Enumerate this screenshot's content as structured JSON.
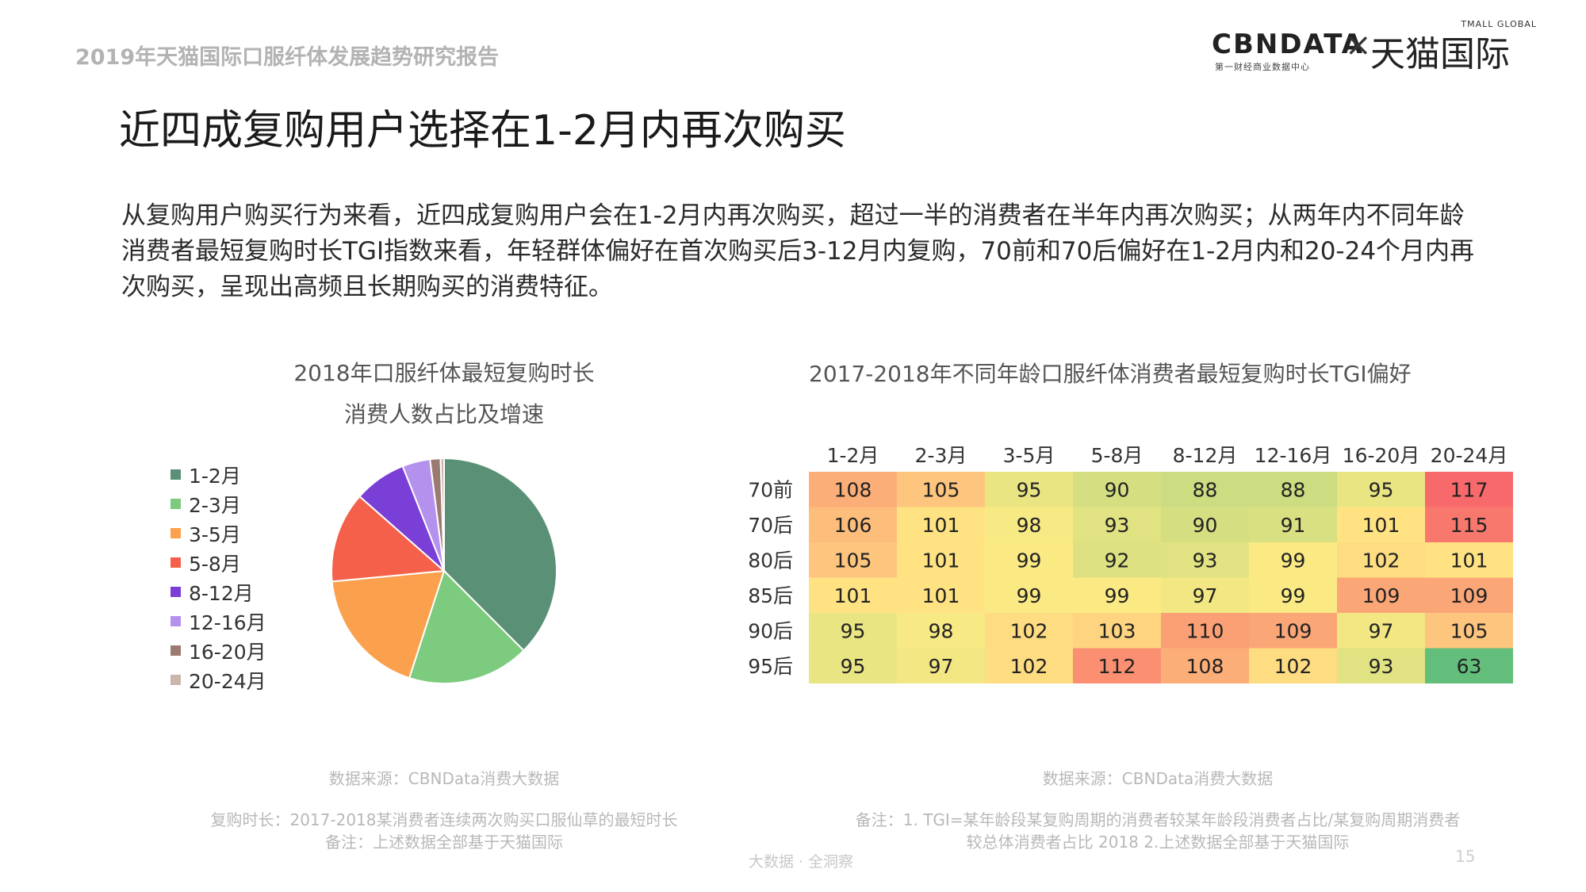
{
  "header": {
    "report_title": "2019年天猫国际口服纤体发展趋势研究报告",
    "logo_cbn": "CBNDATA",
    "logo_cbn_sub": "第一财经商业数据中心",
    "logo_times": "×",
    "logo_tmall": "天猫国际",
    "logo_tmall_en": "TMALL GLOBAL"
  },
  "slide": {
    "title": "近四成复购用户选择在1-2月内再次购买",
    "summary": "从复购用户购买行为来看，近四成复购用户会在1-2月内再次购买，超过一半的消费者在半年内再次购买；从两年内不同年龄消费者最短复购时长TGI指数来看，年轻群体偏好在首次购买后3-12月内复购，70前和70后偏好在1-2月内和20-24个月内再次购买，呈现出高频且长期购买的消费特征。"
  },
  "pie": {
    "title_line1": "2018年口服纤体最短复购时长",
    "title_line2": "消费人数占比及增速",
    "source": "数据来源：CBNData消费大数据",
    "note_line1": "复购时长：2017-2018某消费者连续两次购买口服仙草的最短时长",
    "note_line2": "备注：上述数据全部基于天猫国际"
  },
  "heatmap": {
    "title": "2017-2018年不同年龄口服纤体消费者最短复购时长TGI偏好",
    "source": "数据来源：CBNData消费大数据",
    "note_line1": "备注：1. TGI=某年龄段某复购周期的消费者较某年龄段消费者占比/某复购周期消费者",
    "note_line2": "较总体消费者占比  2018 2.上述数据全部基于天猫国际"
  },
  "footer": {
    "slogan": "大数据 · 全洞察",
    "page_number": "15"
  },
  "chart_data": [
    {
      "type": "pie",
      "title": "2018年口服纤体最短复购时长 消费人数占比及增速",
      "categories": [
        "1-2月",
        "2-3月",
        "3-5月",
        "5-8月",
        "8-12月",
        "12-16月",
        "16-20月",
        "20-24月"
      ],
      "values": [
        37.5,
        17.5,
        18.5,
        13.0,
        7.5,
        4.0,
        1.5,
        0.5
      ],
      "colors": [
        "#5a9176",
        "#7ccb7e",
        "#fba14e",
        "#f5604a",
        "#7a3fd6",
        "#b591ee",
        "#9b7a72",
        "#c9b5ab"
      ],
      "legend_position": "left",
      "start_angle_deg": 0,
      "direction": "clockwise"
    },
    {
      "type": "heatmap",
      "title": "2017-2018年不同年龄口服纤体消费者最短复购时长TGI偏好",
      "columns": [
        "1-2月",
        "2-3月",
        "3-5月",
        "5-8月",
        "8-12月",
        "12-16月",
        "16-20月",
        "20-24月"
      ],
      "rows": [
        "70前",
        "70后",
        "80后",
        "85后",
        "90后",
        "95后"
      ],
      "values": [
        [
          108,
          105,
          95,
          90,
          88,
          88,
          95,
          117
        ],
        [
          106,
          101,
          98,
          93,
          90,
          91,
          101,
          115
        ],
        [
          105,
          101,
          99,
          92,
          93,
          99,
          102,
          101
        ],
        [
          101,
          101,
          99,
          99,
          97,
          99,
          109,
          109
        ],
        [
          95,
          98,
          102,
          103,
          110,
          109,
          97,
          105
        ],
        [
          95,
          97,
          102,
          112,
          108,
          102,
          93,
          63
        ]
      ],
      "color_scale": {
        "low": "#63be7b",
        "mid": "#ffeb84",
        "high": "#f8696b"
      }
    }
  ]
}
